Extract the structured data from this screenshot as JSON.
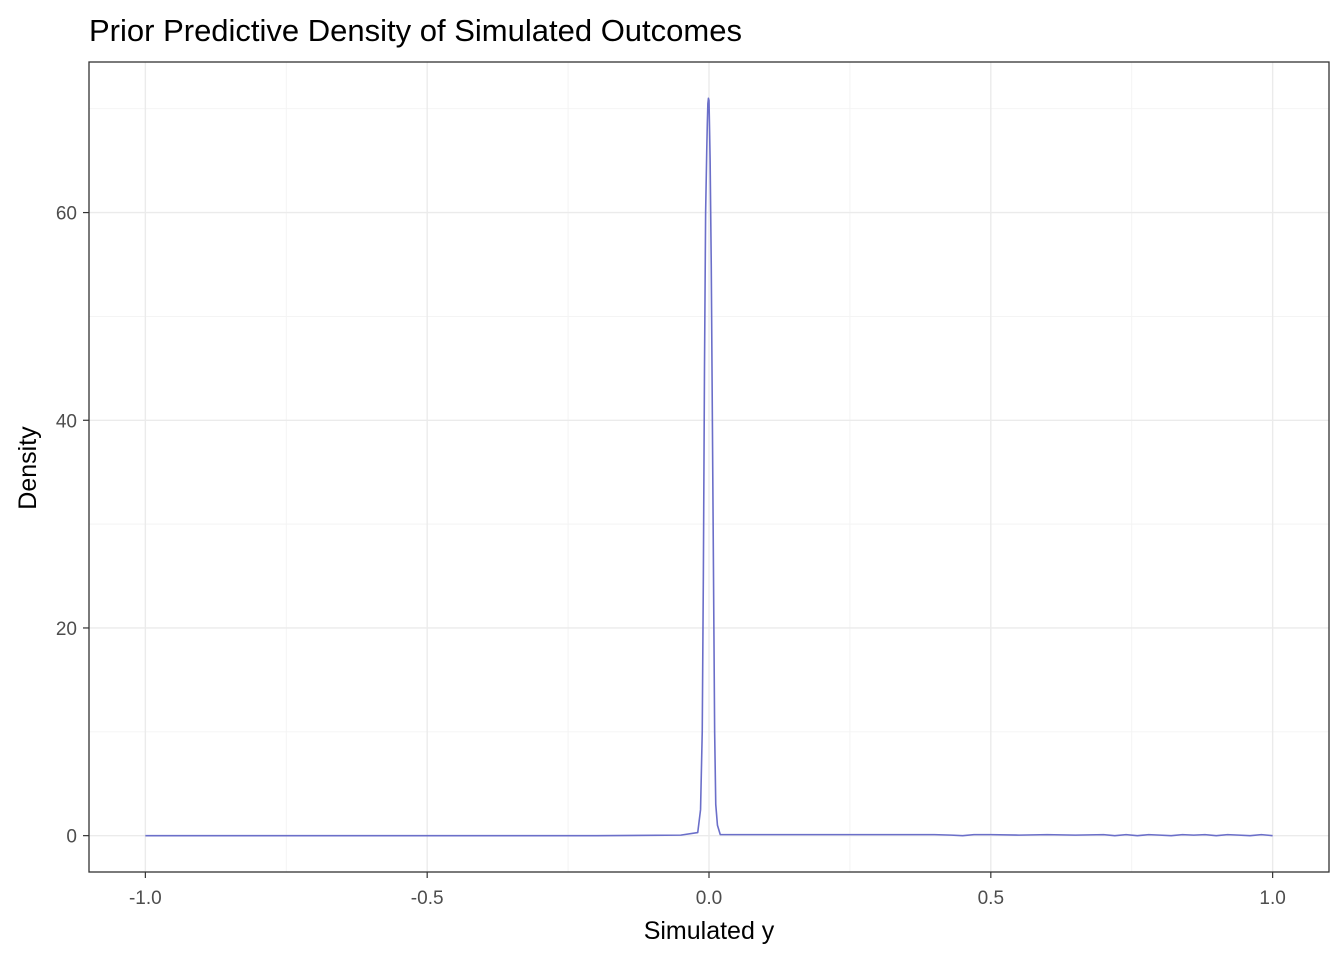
{
  "chart_data": {
    "type": "line",
    "title": "Prior Predictive Density of Simulated Outcomes",
    "xlabel": "Simulated y",
    "ylabel": "Density",
    "xlim": [
      -1.1,
      1.1
    ],
    "ylim": [
      -3.5,
      74.5
    ],
    "x_ticks": [
      -1.0,
      -0.5,
      0.0,
      0.5,
      1.0
    ],
    "x_tick_labels": [
      "-1.0",
      "-0.5",
      "0.0",
      "0.5",
      "1.0"
    ],
    "y_ticks": [
      0,
      20,
      40,
      60
    ],
    "y_tick_labels": [
      "0",
      "20",
      "40",
      "60"
    ],
    "grid": true,
    "line_color": "#6b6fc9",
    "series": [
      {
        "x": [
          -1.0,
          -0.5,
          -0.2,
          -0.05,
          -0.02,
          -0.015,
          -0.012,
          -0.01,
          -0.008,
          -0.006,
          -0.004,
          -0.003,
          -0.002,
          -0.001,
          0.0,
          0.001,
          0.002,
          0.003,
          0.004,
          0.006,
          0.008,
          0.01,
          0.012,
          0.015,
          0.02,
          0.05,
          0.1,
          0.2,
          0.3,
          0.4,
          0.43,
          0.45,
          0.47,
          0.5,
          0.55,
          0.6,
          0.65,
          0.7,
          0.72,
          0.74,
          0.76,
          0.78,
          0.8,
          0.82,
          0.84,
          0.86,
          0.88,
          0.9,
          0.92,
          0.94,
          0.96,
          0.98,
          1.0
        ],
        "y": [
          0.0,
          0.0,
          0.0,
          0.05,
          0.3,
          2.5,
          10.0,
          25.0,
          45.0,
          60.0,
          66.0,
          68.5,
          70.5,
          71.0,
          70.8,
          68.0,
          65.0,
          60.0,
          55.0,
          40.0,
          25.0,
          10.0,
          3.0,
          1.0,
          0.1,
          0.1,
          0.1,
          0.1,
          0.1,
          0.1,
          0.05,
          0.0,
          0.1,
          0.1,
          0.05,
          0.1,
          0.05,
          0.1,
          0.0,
          0.1,
          0.0,
          0.1,
          0.05,
          0.0,
          0.1,
          0.05,
          0.1,
          0.0,
          0.1,
          0.05,
          0.0,
          0.1,
          0.0
        ]
      }
    ]
  }
}
